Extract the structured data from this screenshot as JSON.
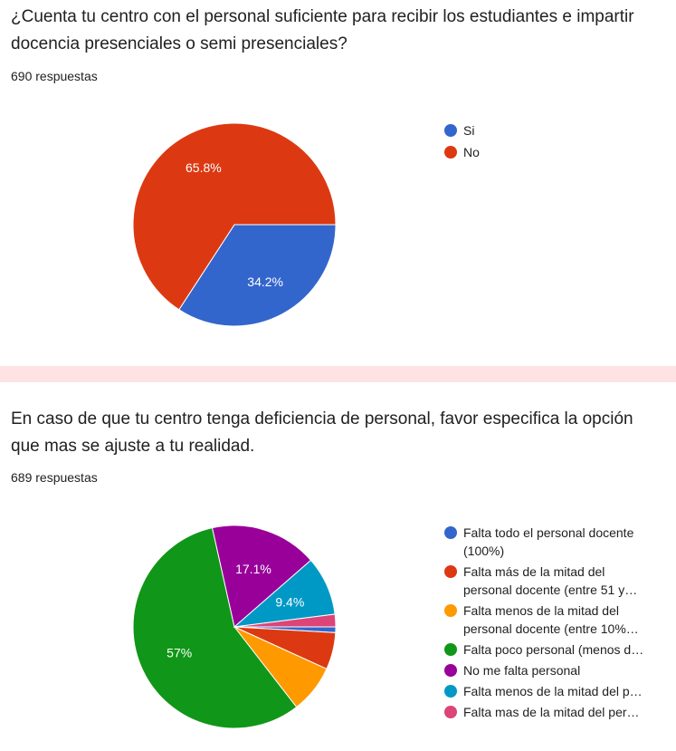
{
  "cards": [
    {
      "question": "¿Cuenta tu centro con el personal suficiente para recibir los estudiantes e impartir docencia presenciales o semi presenciales?",
      "count": "690 respuestas"
    },
    {
      "question": "En caso de que tu centro tenga deficiencia de personal, favor especifica la opción que mas se ajuste a tu realidad.",
      "count": "689 respuestas"
    }
  ],
  "chart_data": [
    {
      "type": "pie",
      "total_responses": 690,
      "slices": [
        {
          "label": "Si",
          "value": 34.2,
          "display": "34.2%",
          "color": "#3366cc"
        },
        {
          "label": "No",
          "value": 65.8,
          "display": "65.8%",
          "color": "#dc3912"
        }
      ],
      "legend_position": "right"
    },
    {
      "type": "pie",
      "total_responses": 689,
      "slices": [
        {
          "label": "Falta todo el personal docente (100%)",
          "value": 0.9,
          "display": "",
          "color": "#3366cc"
        },
        {
          "label": "Falta más de la mitad del personal docente (entre 51 y…",
          "value": 5.9,
          "display": "",
          "color": "#dc3912"
        },
        {
          "label": "Falta menos de la mitad del personal docente (entre 10%…",
          "value": 7.7,
          "display": "",
          "color": "#ff9900"
        },
        {
          "label": "Falta poco personal (menos d…",
          "value": 57.0,
          "display": "57%",
          "color": "#109618"
        },
        {
          "label": "No me falta personal",
          "value": 17.1,
          "display": "17.1%",
          "color": "#990099"
        },
        {
          "label": "Falta menos de la mitad del p…",
          "value": 9.4,
          "display": "9.4%",
          "color": "#0099c6"
        },
        {
          "label": "Falta mas de la mitad del per…",
          "value": 2.0,
          "display": "",
          "color": "#dd4477"
        }
      ],
      "legend_position": "right"
    }
  ]
}
